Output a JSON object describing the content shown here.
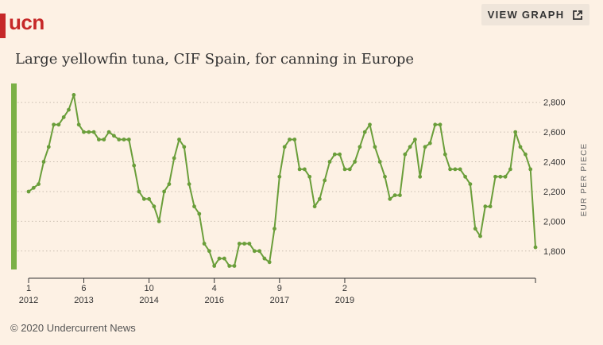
{
  "brand": {
    "logo_text": "ucn",
    "color": "#c62828"
  },
  "view_button": {
    "label": "VIEW GRAPH",
    "icon": "external-link-icon"
  },
  "title": "Large yellowfin tuna, CIF Spain, for canning in Europe",
  "footer": "© 2020 Undercurrent News",
  "chart_data": {
    "type": "line",
    "title": "Large yellowfin tuna, CIF Spain, for canning in Europe",
    "ylabel": "EUR PER PIECE",
    "ylim": [
      1660,
      2900
    ],
    "yticks": [
      1800,
      2000,
      2200,
      2400,
      2600,
      2800
    ],
    "ytick_labels": [
      "1,800",
      "2,000",
      "2,200",
      "2,400",
      "2,600",
      "2,800"
    ],
    "xticks": [
      {
        "index": 0,
        "month": "1",
        "year": "2012"
      },
      {
        "index": 11,
        "month": "6",
        "year": "2013"
      },
      {
        "index": 24,
        "month": "10",
        "year": "2014"
      },
      {
        "index": 37,
        "month": "4",
        "year": "2016"
      },
      {
        "index": 50,
        "month": "9",
        "year": "2017"
      },
      {
        "index": 63,
        "month": "2",
        "year": "2019"
      }
    ],
    "grid": true,
    "line_color": "#6a9e3a",
    "series": [
      {
        "values": [
          2200,
          2225,
          2250,
          2400,
          2500,
          2650,
          2650,
          2700,
          2750,
          2850,
          2650,
          2600,
          2600,
          2600,
          2550,
          2550,
          2600,
          2575,
          2550,
          2550,
          2550,
          2375,
          2200,
          2150,
          2150,
          2100,
          2000,
          2200,
          2250,
          2425,
          2550,
          2500,
          2250,
          2100,
          2050,
          1850,
          1800,
          1700,
          1750,
          1750,
          1700,
          1700,
          1850,
          1850,
          1850,
          1800,
          1800,
          1750,
          1725,
          1950,
          2300,
          2500,
          2550,
          2550,
          2350,
          2350,
          2300,
          2100,
          2150,
          2275,
          2400,
          2450,
          2450,
          2350,
          2350,
          2400,
          2500,
          2600,
          2650,
          2500,
          2400,
          2300,
          2150,
          2175,
          2175,
          2450,
          2500,
          2550,
          2300,
          2500,
          2525,
          2650,
          2650,
          2450,
          2350,
          2350,
          2350,
          2300,
          2250,
          1950,
          1900,
          2100,
          2100,
          2300,
          2300,
          2300,
          2350,
          2600,
          2500,
          2450,
          2350,
          1825
        ]
      }
    ]
  }
}
